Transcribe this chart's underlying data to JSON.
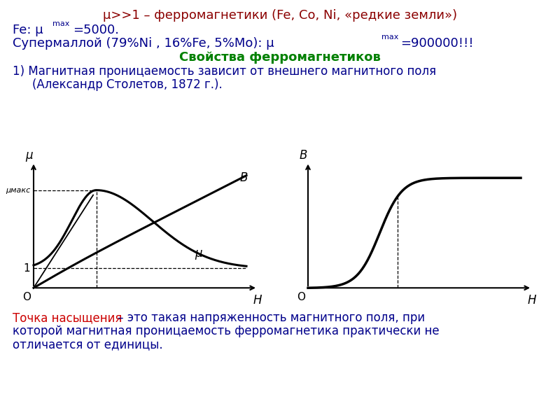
{
  "bg_color": "#ffffff",
  "title_line1": "μ>>1 – ферромагнетики (Fe, Co, Ni, «редкие земли»)",
  "subtitle": "Свойства ферромагнетиков",
  "prop_text1": "1) Магнитная проницаемость зависит от внешнего магнитного поля",
  "prop_text2": "(Александр Столетов, 1872 г.).",
  "bottom_text1a": "Точка насыщения",
  "bottom_text1b": " – это такая напряженность магнитного поля, при",
  "bottom_text2": "которой магнитная проницаемость ферромагнетика практически не",
  "bottom_text3": "отличается от единицы.",
  "color_title1": "#8B0000",
  "color_title23": "#00008B",
  "color_subtitle": "#008000",
  "color_prop": "#00008B",
  "color_bottom_a": "#cc0000",
  "color_bottom_b": "#00008B"
}
